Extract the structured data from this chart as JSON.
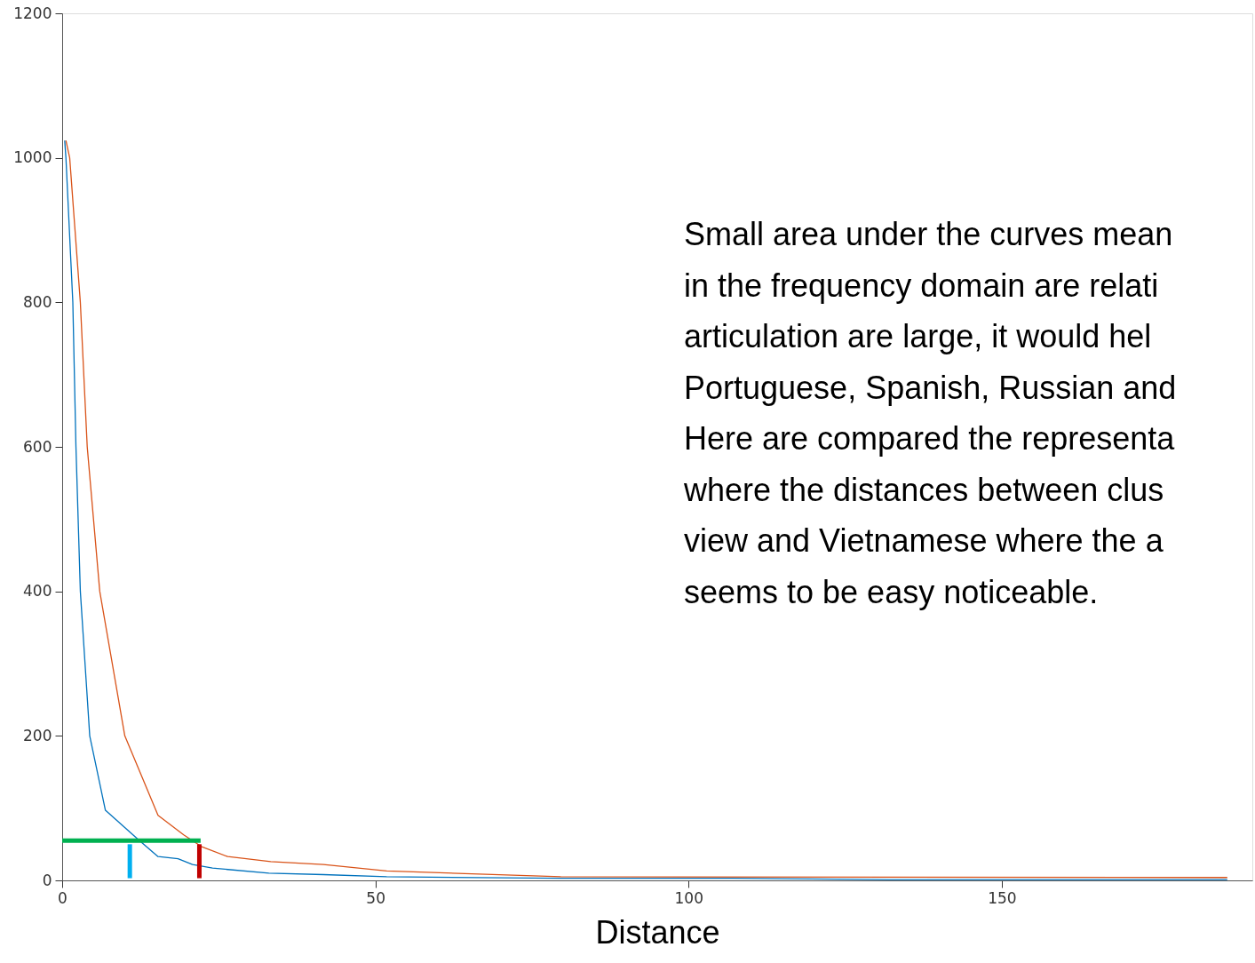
{
  "chart_data": {
    "type": "line",
    "xlabel": "Distance",
    "xlim": [
      0,
      190
    ],
    "xticks": [
      0,
      50,
      100,
      150
    ],
    "ylim": [
      0,
      1200
    ],
    "yticks": [
      0,
      200,
      400,
      600,
      800,
      1000,
      1200
    ],
    "grid": false,
    "series": [
      {
        "color": "#0072bd",
        "x": [
          0.4,
          0.6,
          1.7,
          2.2,
          2.9,
          4.4,
          6.9,
          12.1,
          15.3,
          18.5,
          20.8,
          24,
          33,
          41.7,
          51.8,
          79.6,
          107,
          132,
          157,
          186
        ],
        "values": [
          1024,
          1000,
          800,
          600,
          400,
          200,
          97,
          57,
          33,
          30,
          22,
          17,
          10,
          8,
          5,
          3,
          3,
          1,
          1,
          1
        ]
      },
      {
        "color": "#d95319",
        "x": [
          0.6,
          1.2,
          2.9,
          4.0,
          6.0,
          10.0,
          15.3,
          19.4,
          22.2,
          26.4,
          33.3,
          41.7,
          51.8,
          79.6,
          186
        ],
        "values": [
          1024,
          1000,
          800,
          600,
          400,
          200,
          90,
          63,
          47,
          33,
          26,
          22,
          13,
          5,
          4
        ]
      },
      {
        "color": "#00b050",
        "x": [
          0,
          22.1
        ],
        "values": [
          55,
          55
        ]
      },
      {
        "color": "#00b0f0",
        "x": [
          10.8,
          10.8
        ],
        "values": [
          3,
          50
        ]
      },
      {
        "color": "#c00000",
        "x": [
          21.9,
          21.9
        ],
        "values": [
          3,
          50
        ]
      }
    ],
    "annotations": [
      "Small area under the curves mean",
      "in the frequency domain are relati",
      "articulation are large, it would hel",
      "Portuguese, Spanish, Russian and",
      "Here are compared the representa",
      "where the distances between clus",
      "view and Vietnamese where the a",
      "seems to be easy noticeable."
    ]
  }
}
